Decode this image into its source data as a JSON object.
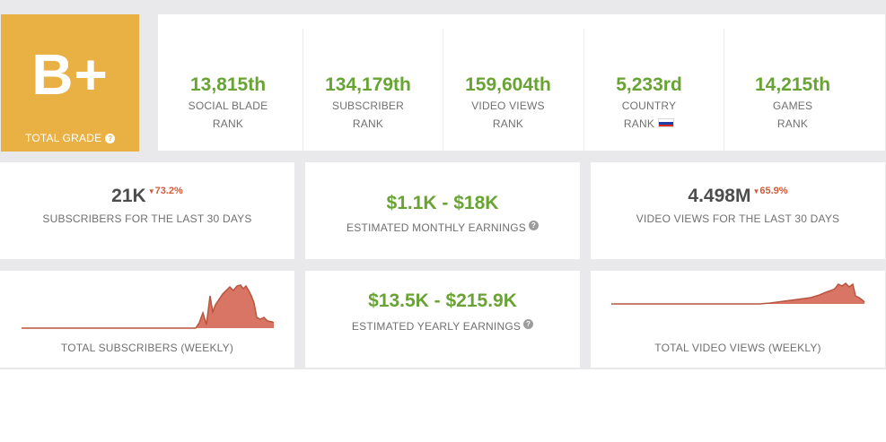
{
  "grade": {
    "value": "B+",
    "label": "TOTAL GRADE",
    "help_icon": "question-circle-icon"
  },
  "ranks": [
    {
      "value": "13,815th",
      "line1": "SOCIAL BLADE",
      "line2": "RANK"
    },
    {
      "value": "134,179th",
      "line1": "SUBSCRIBER",
      "line2": "RANK"
    },
    {
      "value": "159,604th",
      "line1": "VIDEO VIEWS",
      "line2": "RANK"
    },
    {
      "value": "5,233rd",
      "line1": "COUNTRY",
      "line2": "RANK",
      "flag_icon": "russia-flag-icon"
    },
    {
      "value": "14,215th",
      "line1": "GAMES",
      "line2": "RANK"
    }
  ],
  "stats": {
    "subscribers_30d": {
      "value": "21K",
      "change": "73.2%",
      "direction": "down",
      "label": "SUBSCRIBERS FOR THE LAST 30 DAYS"
    },
    "monthly_earnings": {
      "value": "$1.1K - $18K",
      "label": "ESTIMATED MONTHLY EARNINGS"
    },
    "views_30d": {
      "value": "4.498M",
      "change": "65.9%",
      "direction": "down",
      "label": "VIDEO VIEWS FOR THE LAST 30 DAYS"
    },
    "yearly_earnings": {
      "value": "$13.5K - $215.9K",
      "label": "ESTIMATED YEARLY EARNINGS"
    }
  },
  "charts": {
    "subscribers": {
      "label": "TOTAL SUBSCRIBERS (WEEKLY)"
    },
    "views": {
      "label": "TOTAL VIDEO VIEWS (WEEKLY)"
    }
  },
  "colors": {
    "grade_bg": "#e9b043",
    "accent_green": "#68a334",
    "decline_red": "#d25b3b",
    "chart_fill": "#d97564",
    "chart_line": "#b8553f",
    "background": "#e9e9ec"
  }
}
